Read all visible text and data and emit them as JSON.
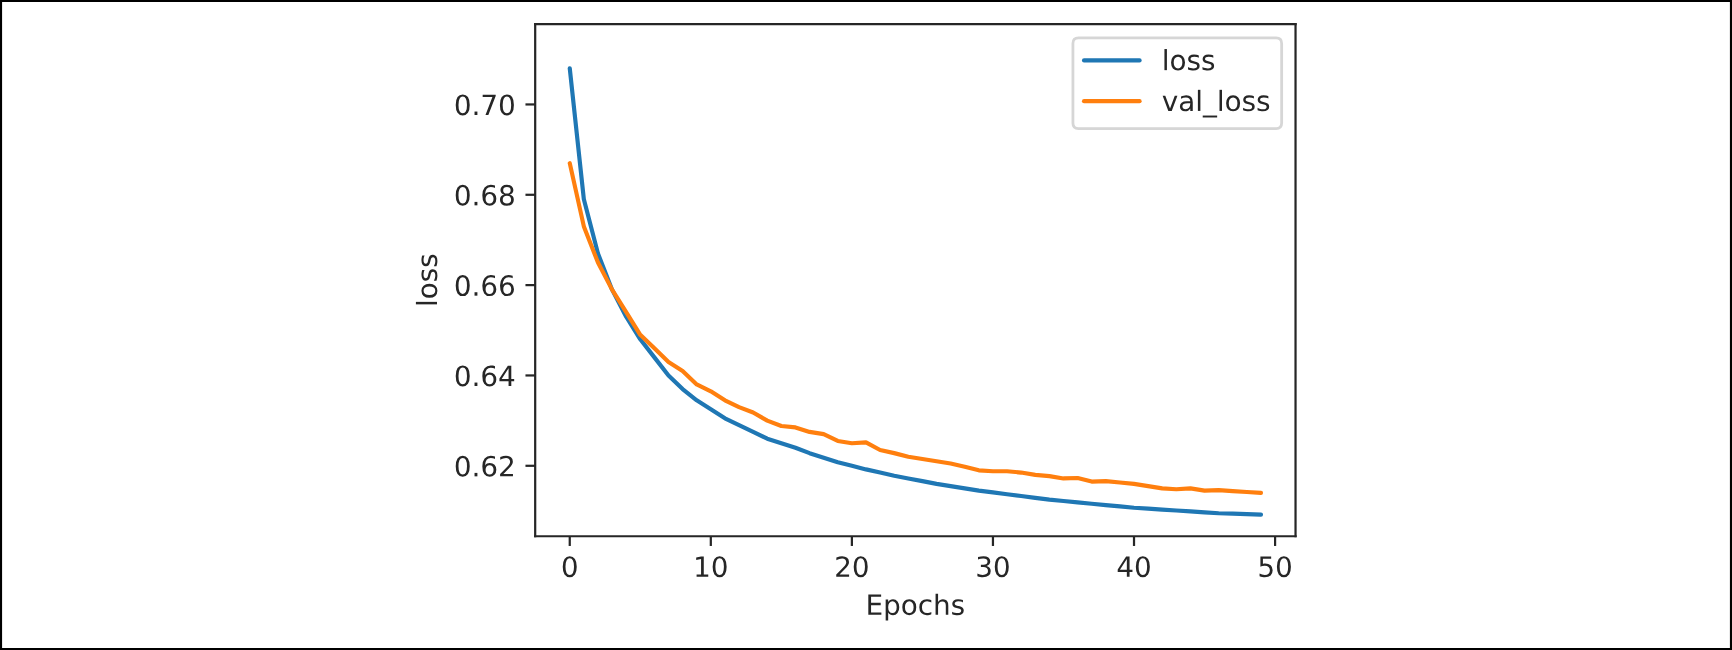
{
  "chart_data": {
    "type": "line",
    "xlabel": "Epochs",
    "ylabel": "loss",
    "legend": "top right",
    "grid": false,
    "x": [
      0,
      1,
      2,
      3,
      4,
      5,
      6,
      7,
      8,
      9,
      10,
      11,
      12,
      13,
      14,
      15,
      16,
      17,
      18,
      19,
      20,
      21,
      22,
      23,
      24,
      25,
      26,
      27,
      28,
      29,
      30,
      31,
      32,
      33,
      34,
      35,
      36,
      37,
      38,
      39,
      40,
      41,
      42,
      43,
      44,
      45,
      46,
      47,
      48,
      49
    ],
    "series": [
      {
        "name": "loss",
        "color": "#1f77b4",
        "values": [
          0.708,
          0.679,
          0.667,
          0.659,
          0.653,
          0.648,
          0.644,
          0.64,
          0.637,
          0.6345,
          0.6325,
          0.6305,
          0.629,
          0.6275,
          0.626,
          0.625,
          0.624,
          0.6228,
          0.6218,
          0.6208,
          0.62,
          0.6192,
          0.6185,
          0.6178,
          0.6172,
          0.6166,
          0.616,
          0.6155,
          0.615,
          0.6145,
          0.6141,
          0.6137,
          0.6133,
          0.6129,
          0.6125,
          0.6122,
          0.6119,
          0.6116,
          0.6113,
          0.611,
          0.6107,
          0.6105,
          0.6103,
          0.6101,
          0.6099,
          0.6097,
          0.6095,
          0.6094,
          0.6093,
          0.6092
        ]
      },
      {
        "name": "val_loss",
        "color": "#ff7f0e",
        "values": [
          0.687,
          0.673,
          0.665,
          0.659,
          0.654,
          0.649,
          0.646,
          0.643,
          0.641,
          0.638,
          0.6365,
          0.6345,
          0.633,
          0.6318,
          0.63,
          0.6288,
          0.6285,
          0.6275,
          0.627,
          0.6255,
          0.625,
          0.6252,
          0.6235,
          0.6228,
          0.622,
          0.6215,
          0.621,
          0.6205,
          0.6198,
          0.619,
          0.6188,
          0.6188,
          0.6185,
          0.618,
          0.6177,
          0.6172,
          0.6173,
          0.6165,
          0.6166,
          0.6163,
          0.616,
          0.6155,
          0.615,
          0.6148,
          0.615,
          0.6145,
          0.6146,
          0.6144,
          0.6142,
          0.614
        ]
      }
    ],
    "xlim": [
      -2.45,
      51.45
    ],
    "ylim": [
      0.6044,
      0.7178
    ],
    "xticks": [
      0,
      10,
      20,
      30,
      40,
      50
    ],
    "yticks": [
      {
        "value": 0.62,
        "label": "0.62"
      },
      {
        "value": 0.64,
        "label": "0.64"
      },
      {
        "value": 0.66,
        "label": "0.66"
      },
      {
        "value": 0.68,
        "label": "0.68"
      },
      {
        "value": 0.7,
        "label": "0.70"
      }
    ]
  }
}
